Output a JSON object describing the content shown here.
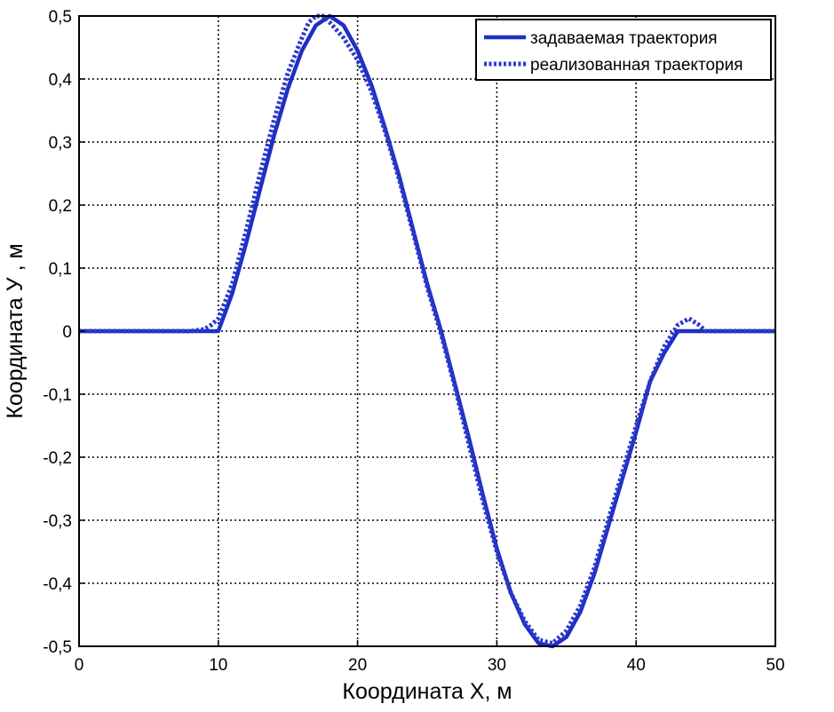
{
  "chart_data": {
    "type": "line",
    "xlabel": "Координата Х, м",
    "ylabel": "Координата  У , м",
    "xlim": [
      0,
      50
    ],
    "ylim": [
      -0.5,
      0.5
    ],
    "grid": true,
    "legend_position": "top-right",
    "x_ticks": [
      0,
      10,
      20,
      30,
      40,
      50
    ],
    "x_tick_labels": [
      "0",
      "10",
      "20",
      "30",
      "40",
      "50"
    ],
    "y_ticks": [
      0.5,
      0.4,
      0.3,
      0.2,
      0.1,
      0,
      -0.1,
      -0.2,
      -0.3,
      -0.4,
      -0.5
    ],
    "y_tick_labels": [
      "0,5",
      "0,4",
      "0,3",
      "0,2",
      "0,1",
      "0",
      "-0,1",
      "-0,2",
      "-0,3",
      "-0,4",
      "-0,5"
    ],
    "series": [
      {
        "name": "задаваемая траектория",
        "style": "solid",
        "color": "#1f2ec4",
        "points": [
          [
            0,
            0
          ],
          [
            10,
            0
          ],
          [
            11,
            0.06
          ],
          [
            12,
            0.14
          ],
          [
            13,
            0.225
          ],
          [
            14,
            0.31
          ],
          [
            15,
            0.385
          ],
          [
            16,
            0.445
          ],
          [
            17,
            0.485
          ],
          [
            18,
            0.5
          ],
          [
            19,
            0.485
          ],
          [
            20,
            0.445
          ],
          [
            21,
            0.39
          ],
          [
            22,
            0.32
          ],
          [
            23,
            0.245
          ],
          [
            24,
            0.16
          ],
          [
            25,
            0.075
          ],
          [
            26,
            0
          ],
          [
            27,
            -0.085
          ],
          [
            28,
            -0.17
          ],
          [
            29,
            -0.26
          ],
          [
            30,
            -0.345
          ],
          [
            31,
            -0.415
          ],
          [
            32,
            -0.465
          ],
          [
            33,
            -0.495
          ],
          [
            34,
            -0.5
          ],
          [
            35,
            -0.485
          ],
          [
            36,
            -0.445
          ],
          [
            37,
            -0.385
          ],
          [
            38,
            -0.31
          ],
          [
            39,
            -0.235
          ],
          [
            40,
            -0.16
          ],
          [
            41,
            -0.08
          ],
          [
            42,
            -0.035
          ],
          [
            43,
            0
          ],
          [
            50,
            0
          ]
        ]
      },
      {
        "name": "реализованная траектория",
        "style": "dotted",
        "color": "#2c3bc9",
        "points": [
          [
            0,
            0
          ],
          [
            8,
            0
          ],
          [
            9,
            0.003
          ],
          [
            9.5,
            0.01
          ],
          [
            10,
            0.02
          ],
          [
            11,
            0.075
          ],
          [
            12,
            0.16
          ],
          [
            13,
            0.25
          ],
          [
            14,
            0.335
          ],
          [
            15,
            0.41
          ],
          [
            16,
            0.465
          ],
          [
            16.5,
            0.49
          ],
          [
            17,
            0.5
          ],
          [
            17.5,
            0.5
          ],
          [
            18,
            0.49
          ],
          [
            19,
            0.465
          ],
          [
            20,
            0.43
          ],
          [
            21,
            0.38
          ],
          [
            22,
            0.315
          ],
          [
            23,
            0.24
          ],
          [
            24,
            0.155
          ],
          [
            25,
            0.07
          ],
          [
            26,
            -0.005
          ],
          [
            27,
            -0.09
          ],
          [
            28,
            -0.18
          ],
          [
            29,
            -0.27
          ],
          [
            30,
            -0.35
          ],
          [
            31,
            -0.415
          ],
          [
            32,
            -0.46
          ],
          [
            33,
            -0.49
          ],
          [
            34,
            -0.495
          ],
          [
            35,
            -0.475
          ],
          [
            36,
            -0.435
          ],
          [
            37,
            -0.375
          ],
          [
            38,
            -0.3
          ],
          [
            39,
            -0.225
          ],
          [
            40,
            -0.15
          ],
          [
            41,
            -0.08
          ],
          [
            42,
            -0.025
          ],
          [
            43,
            0.01
          ],
          [
            43.8,
            0.02
          ],
          [
            44.5,
            0.01
          ],
          [
            45,
            0
          ],
          [
            50,
            0
          ]
        ]
      }
    ]
  }
}
